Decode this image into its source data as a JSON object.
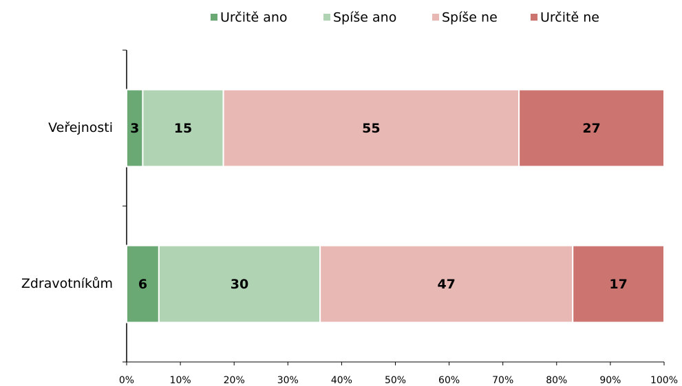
{
  "chart_data": {
    "type": "stacked-bar-horizontal",
    "categories": [
      "Veřejnosti",
      "Zdravotníkům"
    ],
    "series": [
      {
        "name": "Určitě ano",
        "color": "#6aa874",
        "values": [
          3,
          6
        ]
      },
      {
        "name": "Spíše ano",
        "color": "#b0d3b4",
        "values": [
          15,
          30
        ]
      },
      {
        "name": "Spíše ne",
        "color": "#e8b8b4",
        "values": [
          55,
          47
        ]
      },
      {
        "name": "Určitě ne",
        "color": "#cc7470",
        "values": [
          27,
          17
        ]
      }
    ],
    "xlim": [
      0,
      100
    ],
    "xticks": [
      {
        "value": 0,
        "label": "0%"
      },
      {
        "value": 10,
        "label": "10%"
      },
      {
        "value": 20,
        "label": "20%"
      },
      {
        "value": 30,
        "label": "30%"
      },
      {
        "value": 40,
        "label": "40%"
      },
      {
        "value": 50,
        "label": "50%"
      },
      {
        "value": 60,
        "label": "60%"
      },
      {
        "value": 70,
        "label": "70%"
      },
      {
        "value": 80,
        "label": "80%"
      },
      {
        "value": 90,
        "label": "90%"
      },
      {
        "value": 100,
        "label": "100%"
      }
    ],
    "legend": "top"
  }
}
